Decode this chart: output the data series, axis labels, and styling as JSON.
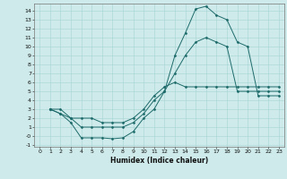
{
  "xlabel": "Humidex (Indice chaleur)",
  "bg_color": "#ceeaea",
  "grid_color": "#a8d4d4",
  "line_color": "#1e6b6b",
  "xlim": [
    -0.5,
    23.5
  ],
  "ylim": [
    -1.2,
    14.8
  ],
  "yticks": [
    -1,
    0,
    1,
    2,
    3,
    4,
    5,
    6,
    7,
    8,
    9,
    10,
    11,
    12,
    13,
    14
  ],
  "ytick_labels": [
    "-1",
    "-0",
    "1",
    "2",
    "3",
    "4",
    "5",
    "6",
    "7",
    "8",
    "9",
    "10",
    "11",
    "12",
    "13",
    "14"
  ],
  "xticks": [
    0,
    1,
    2,
    3,
    4,
    5,
    6,
    7,
    8,
    9,
    10,
    11,
    12,
    13,
    14,
    15,
    16,
    17,
    18,
    19,
    20,
    21,
    22,
    23
  ],
  "line1_x": [
    1,
    2,
    3,
    4,
    5,
    6,
    7,
    8,
    9,
    10,
    11,
    12,
    13,
    14,
    15,
    16,
    17,
    18,
    19,
    20,
    21,
    22,
    23
  ],
  "line1_y": [
    3,
    3,
    2,
    2,
    2,
    1.5,
    1.5,
    1.5,
    2,
    3,
    4.5,
    5.5,
    6,
    5.5,
    5.5,
    5.5,
    5.5,
    5.5,
    5.5,
    5.5,
    5.5,
    5.5,
    5.5
  ],
  "line2_x": [
    1,
    2,
    3,
    4,
    5,
    6,
    7,
    8,
    9,
    10,
    11,
    12,
    13,
    14,
    15,
    16,
    17,
    18,
    19,
    20,
    21,
    22,
    23
  ],
  "line2_y": [
    3,
    2.5,
    1.5,
    -0.2,
    -0.2,
    -0.2,
    -0.3,
    -0.2,
    0.5,
    2,
    3,
    5,
    9,
    11.5,
    14.2,
    14.5,
    13.5,
    13,
    10.5,
    10,
    4.5,
    4.5,
    4.5
  ],
  "line3_x": [
    1,
    2,
    3,
    4,
    5,
    6,
    7,
    8,
    9,
    10,
    11,
    12,
    13,
    14,
    15,
    16,
    17,
    18,
    19,
    20,
    21,
    22,
    23
  ],
  "line3_y": [
    3,
    2.5,
    2,
    1,
    1,
    1,
    1,
    1,
    1.5,
    2.5,
    4,
    5,
    7,
    9,
    10.5,
    11,
    10.5,
    10,
    5,
    5,
    5,
    5,
    5
  ]
}
